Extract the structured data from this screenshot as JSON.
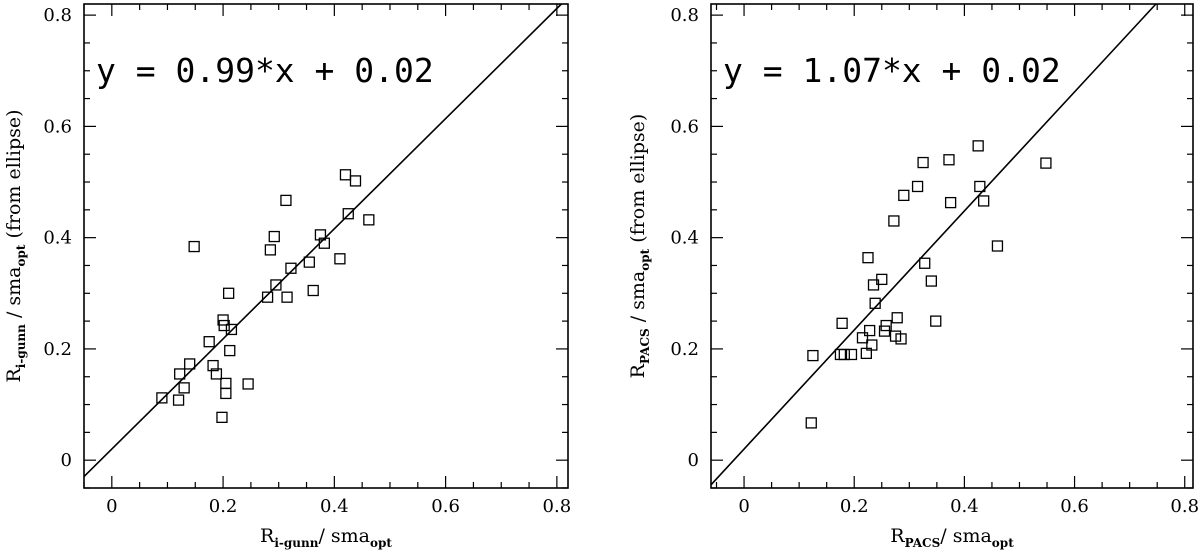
{
  "chart_data": [
    {
      "type": "scatter",
      "xlabel": {
        "main": "R",
        "sub": "i-gunn",
        "mid": "/ sma",
        "sub2": "opt"
      },
      "ylabel": {
        "main": "R",
        "sub": "i-gunn",
        "mid": " / sma",
        "sub2": "opt",
        "tail": "  (from ellipse)"
      },
      "xlim": [
        -0.05,
        0.82
      ],
      "ylim": [
        -0.05,
        0.82
      ],
      "xticks": [
        "0",
        "0.2",
        "0.4",
        "0.6",
        "0.8"
      ],
      "yticks": [
        "0",
        "0.2",
        "0.4",
        "0.6",
        "0.8"
      ],
      "annotation": "y = 0.99*x + 0.02",
      "fit": {
        "slope": 0.99,
        "intercept": 0.02
      },
      "marker": "open-square",
      "points": [
        [
          0.09,
          0.112
        ],
        [
          0.12,
          0.108
        ],
        [
          0.122,
          0.155
        ],
        [
          0.13,
          0.13
        ],
        [
          0.14,
          0.173
        ],
        [
          0.148,
          0.384
        ],
        [
          0.175,
          0.213
        ],
        [
          0.182,
          0.17
        ],
        [
          0.188,
          0.155
        ],
        [
          0.198,
          0.077
        ],
        [
          0.2,
          0.252
        ],
        [
          0.202,
          0.242
        ],
        [
          0.205,
          0.138
        ],
        [
          0.205,
          0.12
        ],
        [
          0.21,
          0.3
        ],
        [
          0.212,
          0.197
        ],
        [
          0.215,
          0.235
        ],
        [
          0.245,
          0.137
        ],
        [
          0.28,
          0.293
        ],
        [
          0.285,
          0.378
        ],
        [
          0.292,
          0.402
        ],
        [
          0.295,
          0.315
        ],
        [
          0.313,
          0.467
        ],
        [
          0.315,
          0.293
        ],
        [
          0.322,
          0.345
        ],
        [
          0.355,
          0.356
        ],
        [
          0.362,
          0.305
        ],
        [
          0.375,
          0.405
        ],
        [
          0.382,
          0.39
        ],
        [
          0.41,
          0.362
        ],
        [
          0.42,
          0.513
        ],
        [
          0.425,
          0.443
        ],
        [
          0.438,
          0.502
        ],
        [
          0.462,
          0.432
        ]
      ]
    },
    {
      "type": "scatter",
      "xlabel": {
        "main": "R",
        "sub": "PACS",
        "mid": "/ sma",
        "sub2": "opt"
      },
      "ylabel": {
        "main": "R",
        "sub": "PACS",
        "mid": " / sma",
        "sub2": "opt",
        "tail": "  (from ellipse)"
      },
      "xlim": [
        -0.06,
        0.815
      ],
      "ylim": [
        -0.05,
        0.82
      ],
      "xticks": [
        "0",
        "0.2",
        "0.4",
        "0.6",
        "0.8"
      ],
      "yticks": [
        "0",
        "0.2",
        "0.4",
        "0.6",
        "0.8"
      ],
      "annotation": "y = 1.07*x + 0.02",
      "fit": {
        "slope": 1.07,
        "intercept": 0.02
      },
      "marker": "open-square",
      "points": [
        [
          0.122,
          0.067
        ],
        [
          0.125,
          0.188
        ],
        [
          0.175,
          0.19
        ],
        [
          0.178,
          0.246
        ],
        [
          0.182,
          0.19
        ],
        [
          0.195,
          0.19
        ],
        [
          0.215,
          0.22
        ],
        [
          0.222,
          0.192
        ],
        [
          0.225,
          0.364
        ],
        [
          0.228,
          0.233
        ],
        [
          0.232,
          0.207
        ],
        [
          0.235,
          0.315
        ],
        [
          0.238,
          0.282
        ],
        [
          0.25,
          0.325
        ],
        [
          0.255,
          0.232
        ],
        [
          0.258,
          0.242
        ],
        [
          0.272,
          0.43
        ],
        [
          0.275,
          0.223
        ],
        [
          0.278,
          0.256
        ],
        [
          0.285,
          0.218
        ],
        [
          0.29,
          0.476
        ],
        [
          0.315,
          0.492
        ],
        [
          0.325,
          0.535
        ],
        [
          0.328,
          0.354
        ],
        [
          0.34,
          0.322
        ],
        [
          0.348,
          0.25
        ],
        [
          0.372,
          0.54
        ],
        [
          0.375,
          0.463
        ],
        [
          0.425,
          0.565
        ],
        [
          0.428,
          0.492
        ],
        [
          0.435,
          0.466
        ],
        [
          0.46,
          0.385
        ],
        [
          0.548,
          0.534
        ]
      ]
    }
  ]
}
